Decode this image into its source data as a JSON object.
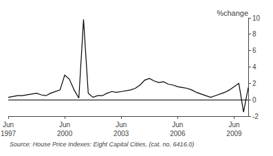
{
  "chart_data": {
    "type": "line",
    "title": "%change",
    "annotations": [
      "Source: House Price Indexes: Eight Capital Cities, (cat. no. 6416.0)"
    ],
    "categories": [
      "Jun\n1997",
      null,
      null,
      null,
      null,
      null,
      null,
      null,
      null,
      null,
      null,
      null,
      "Jun\n2000",
      null,
      null,
      null,
      null,
      null,
      null,
      null,
      null,
      null,
      null,
      null,
      "Jun\n2003",
      null,
      null,
      null,
      null,
      null,
      null,
      null,
      null,
      null,
      null,
      null,
      "Jun\n2006",
      null,
      null,
      null,
      null,
      null,
      null,
      null,
      null,
      null,
      null,
      null,
      "Jun\n2009",
      null,
      null,
      null
    ],
    "values": [
      0.3,
      0.4,
      0.5,
      0.5,
      0.6,
      0.7,
      0.8,
      0.6,
      0.5,
      0.8,
      1.0,
      1.2,
      3.0,
      2.5,
      1.2,
      0.2,
      9.8,
      0.8,
      0.3,
      0.5,
      0.5,
      0.8,
      1.0,
      0.9,
      1.0,
      1.1,
      1.2,
      1.4,
      1.8,
      2.4,
      2.6,
      2.3,
      2.1,
      2.2,
      1.9,
      1.8,
      1.6,
      1.5,
      1.4,
      1.2,
      0.9,
      0.7,
      0.5,
      0.3,
      0.5,
      0.7,
      0.9,
      1.2,
      1.6,
      2.0,
      -1.5,
      1.5
    ],
    "color": "#000000",
    "ylim": [
      -2,
      10
    ],
    "yticks": [
      -2,
      0,
      2,
      4,
      6,
      8,
      10
    ],
    "grid": false
  }
}
